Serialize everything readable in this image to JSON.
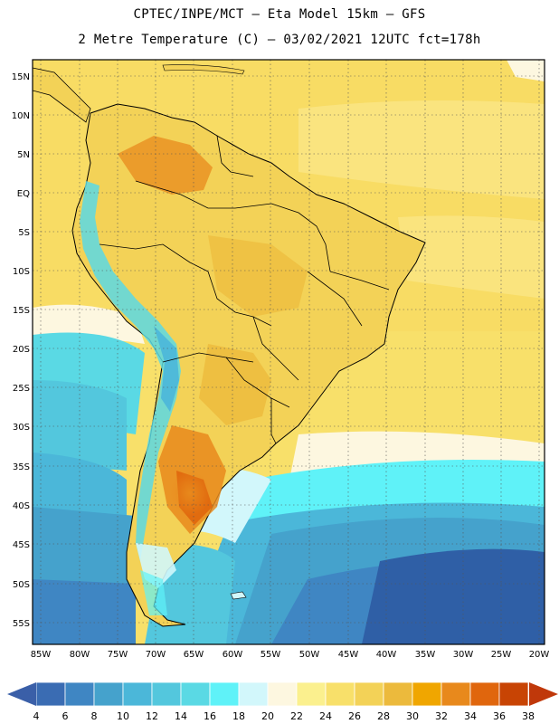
{
  "header": {
    "line1": "CPTEC/INPE/MCT –  Eta Model 15km – GFS",
    "line2": "2 Metre Temperature (C) – 03/02/2021 12UTC fct=178h"
  },
  "axes": {
    "lat_labels": [
      "15N",
      "10N",
      "5N",
      "EQ",
      "5S",
      "10S",
      "15S",
      "20S",
      "25S",
      "30S",
      "35S",
      "40S",
      "45S",
      "50S",
      "55S"
    ],
    "lon_labels": [
      "85W",
      "80W",
      "75W",
      "70W",
      "65W",
      "60W",
      "55W",
      "50W",
      "45W",
      "40W",
      "35W",
      "30W",
      "25W",
      "20W"
    ]
  },
  "legend": {
    "values": [
      "4",
      "6",
      "8",
      "10",
      "12",
      "14",
      "16",
      "18",
      "20",
      "22",
      "24",
      "26",
      "28",
      "30",
      "32",
      "34",
      "36",
      "38"
    ],
    "colors": [
      "#3a6cb3",
      "#3f86c3",
      "#45a2cc",
      "#4bb7d9",
      "#53c7dd",
      "#5ad9e4",
      "#5ff2f8",
      "#d2f7fb",
      "#fdf7e0",
      "#fbf08e",
      "#f8e06a",
      "#f3d257",
      "#ecba3c",
      "#f0a600",
      "#e8891c",
      "#e0660d",
      "#c84404"
    ],
    "low_color": "#3a5fa8",
    "high_color": "#c0380a"
  },
  "colors": {
    "land_outline": "#000000",
    "grid": "#555555"
  }
}
